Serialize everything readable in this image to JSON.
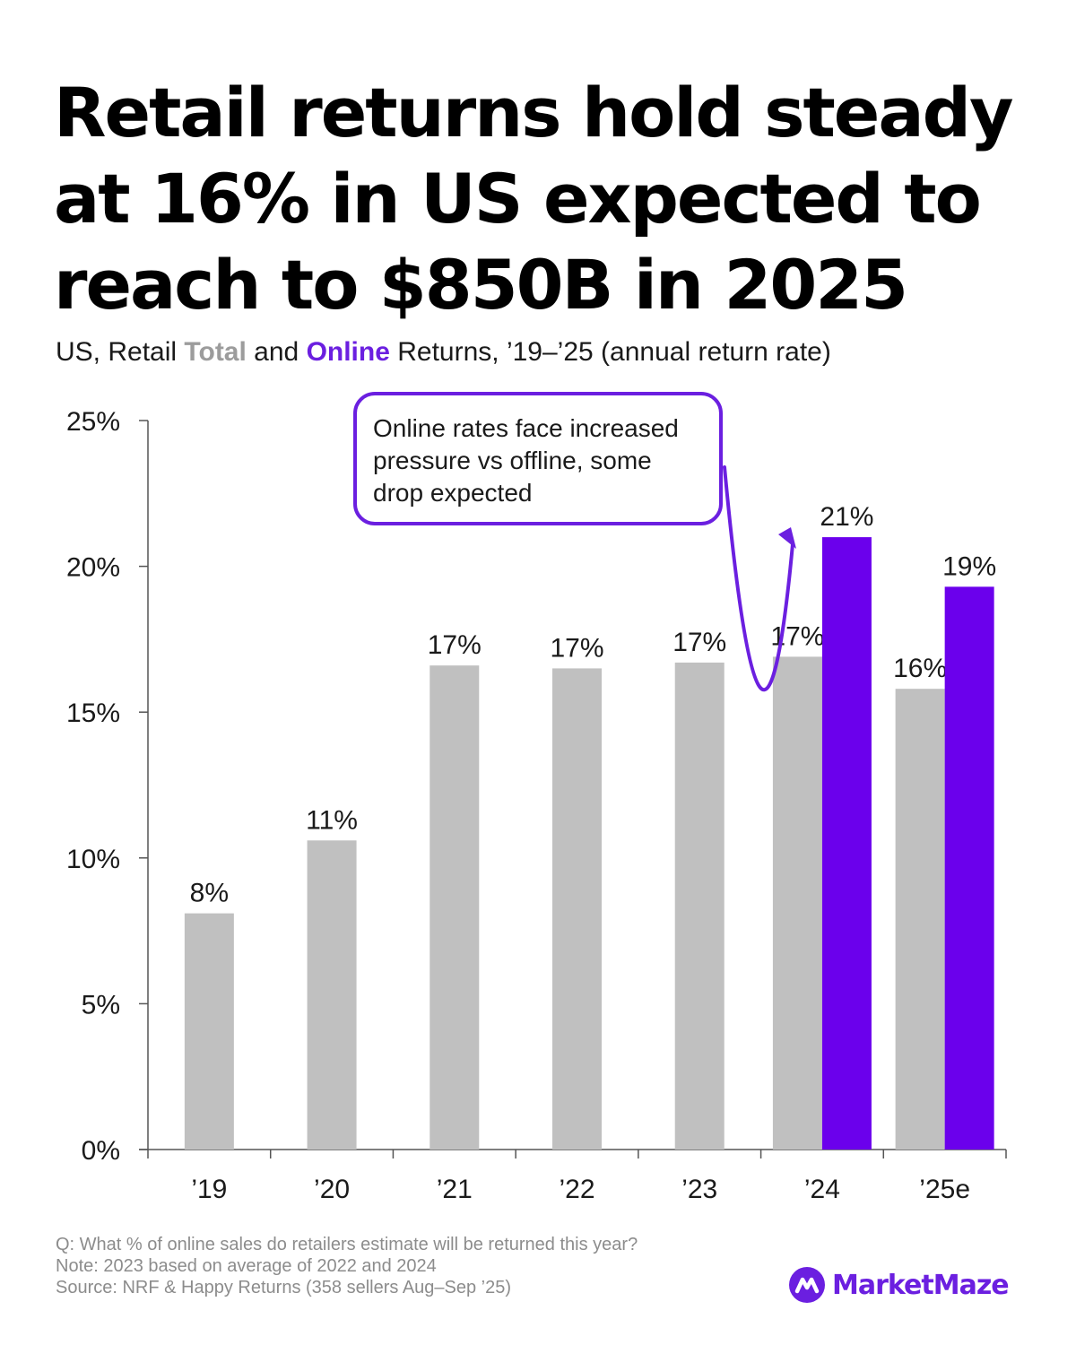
{
  "title": {
    "line1": "Retail returns hold steady",
    "line2": "at 16% in US expected to",
    "line3": "reach to $850B in 2025"
  },
  "subtitle": {
    "prefix": "US, Retail ",
    "total_word": "Total",
    "and": " and ",
    "online_word": "Online",
    "suffix": " Returns, ’19–’25 (annual return rate)"
  },
  "colors": {
    "total": "#c0c0c0",
    "online": "#6b00ec",
    "accent": "#6b1fe0",
    "axis": "#555555"
  },
  "chart_data": {
    "type": "bar",
    "title": "US, Retail Total and Online Returns, ’19–’25 (annual return rate)",
    "xlabel": "",
    "ylabel": "",
    "ylim": [
      0,
      25
    ],
    "yticks": [
      "0%",
      "5%",
      "10%",
      "15%",
      "20%",
      "25%"
    ],
    "categories": [
      "’19",
      "’20",
      "’21",
      "’22",
      "’23",
      "’24",
      "’25e"
    ],
    "series": [
      {
        "name": "Total",
        "values": [
          8.1,
          10.6,
          16.6,
          16.5,
          16.7,
          16.9,
          15.8
        ],
        "labels": [
          "8%",
          "11%",
          "17%",
          "17%",
          "17%",
          "17%",
          "16%"
        ]
      },
      {
        "name": "Online",
        "values": [
          null,
          null,
          null,
          null,
          null,
          21.0,
          19.3
        ],
        "labels": [
          "",
          "",
          "",
          "",
          "",
          "21%",
          "19%"
        ]
      }
    ],
    "annotation": {
      "line1": "Online rates face increased",
      "line2": "pressure vs offline, some",
      "line3": "drop expected"
    }
  },
  "footnotes": {
    "question": "Q: What % of online sales do retailers estimate will be returned this year?",
    "note": "Note: 2023 based on average of 2022 and 2024",
    "source": "Source: NRF & Happy Returns (358 sellers Aug–Sep ’25)"
  },
  "brand": {
    "name": "MarketMaze",
    "icon": "market-maze-logo-icon"
  }
}
